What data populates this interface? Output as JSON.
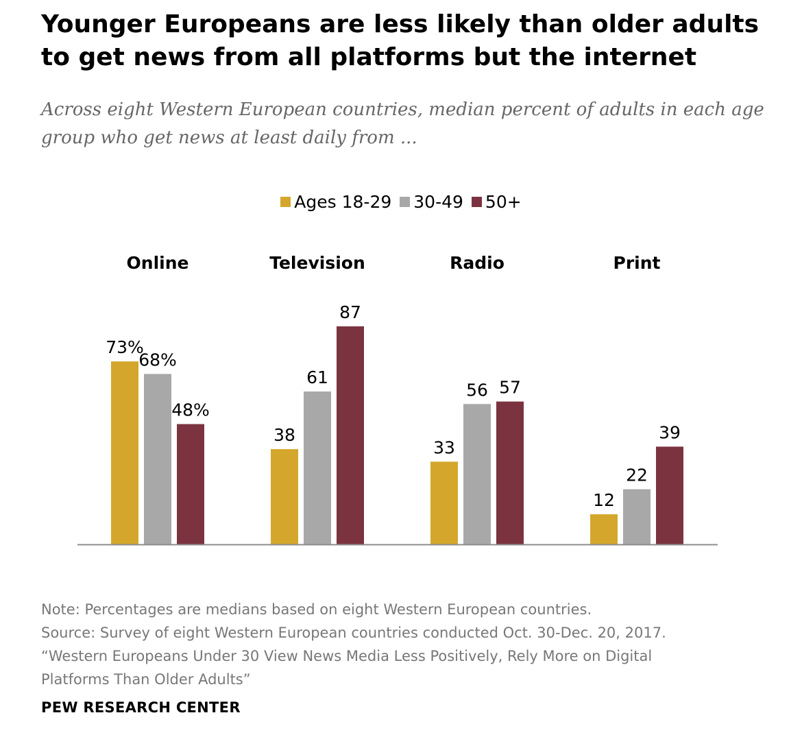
{
  "header": {
    "title": "Younger Europeans are less likely than older adults to get news from all platforms but the internet",
    "subtitle": "Across eight Western European countries, median percent of adults in each age group who get news at least daily from ..."
  },
  "legend": [
    {
      "label": "Ages 18-29",
      "color": "#D4A72C"
    },
    {
      "label": "30-49",
      "color": "#A8A8A8"
    },
    {
      "label": "50+",
      "color": "#7B3340"
    }
  ],
  "chart_data": {
    "type": "bar",
    "categories": [
      "Online",
      "Television",
      "Radio",
      "Print"
    ],
    "series": [
      {
        "name": "Ages 18-29",
        "values": [
          73,
          38,
          33,
          12
        ],
        "color": "#D4A72C"
      },
      {
        "name": "30-49",
        "values": [
          68,
          61,
          56,
          22
        ],
        "color": "#A8A8A8"
      },
      {
        "name": "50+",
        "values": [
          48,
          87,
          57,
          39
        ],
        "color": "#7B3340"
      }
    ],
    "data_labels": [
      [
        "73%",
        "68%",
        "48%"
      ],
      [
        "38",
        "61",
        "87"
      ],
      [
        "33",
        "56",
        "57"
      ],
      [
        "12",
        "22",
        "39"
      ]
    ],
    "ylim": [
      0,
      100
    ],
    "grid": false,
    "legend_position": "top-center"
  },
  "footer": {
    "note": "Note: Percentages are medians based on eight Western European countries.",
    "source": "Source: Survey of eight Western European countries conducted Oct. 30-Dec. 20, 2017.",
    "report_title_line1": "“Western Europeans Under 30 View News Media Less Positively, Rely More on Digital",
    "report_title_line2": "Platforms Than Older Adults”",
    "org": "PEW RESEARCH CENTER"
  }
}
